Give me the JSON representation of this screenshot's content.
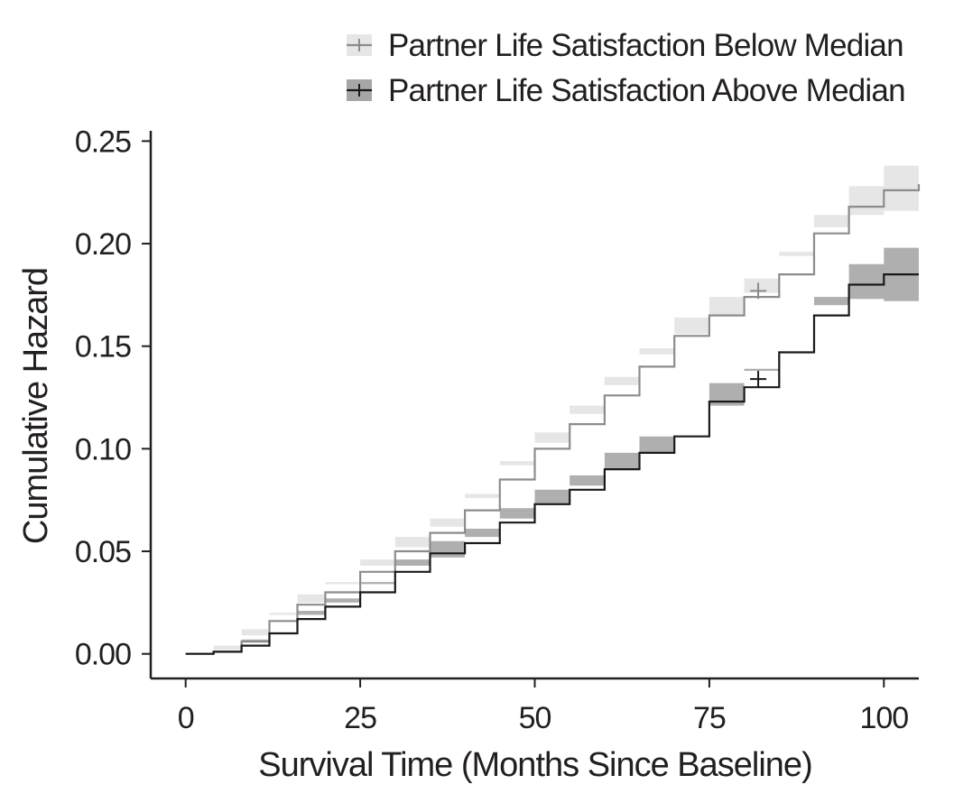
{
  "chart_data": {
    "type": "line",
    "subtype": "step",
    "title": "",
    "xlabel": "Survival Time (Months Since Baseline)",
    "ylabel": "Cumulative Hazard",
    "xlim": [
      -5,
      105
    ],
    "ylim": [
      -0.012,
      0.255
    ],
    "x_ticks": [
      0,
      25,
      50,
      75,
      100
    ],
    "x_tick_labels": [
      "0",
      "25",
      "50",
      "75",
      "100"
    ],
    "y_ticks": [
      0.0,
      0.05,
      0.1,
      0.15,
      0.2,
      0.25
    ],
    "y_tick_labels": [
      "0.00",
      "0.05",
      "0.10",
      "0.15",
      "0.20",
      "0.25"
    ],
    "grid": false,
    "legend_position": "top-right",
    "series": [
      {
        "name": "Partner Life Satisfaction Below Median",
        "line_color": "#8c8c8c",
        "band_color": "#e6e6e6",
        "x": [
          0,
          4,
          8,
          12,
          16,
          20,
          25,
          30,
          35,
          40,
          45,
          50,
          55,
          60,
          65,
          70,
          75,
          80,
          85,
          90,
          95,
          100,
          105
        ],
        "y": [
          0.0,
          0.001,
          0.006,
          0.016,
          0.024,
          0.03,
          0.04,
          0.05,
          0.059,
          0.07,
          0.085,
          0.1,
          0.112,
          0.126,
          0.14,
          0.155,
          0.165,
          0.174,
          0.185,
          0.205,
          0.218,
          0.226,
          0.229
        ],
        "ci_lower": [
          0.0,
          0.0,
          0.004,
          0.012,
          0.019,
          0.025,
          0.034,
          0.043,
          0.052,
          0.062,
          0.076,
          0.092,
          0.103,
          0.117,
          0.131,
          0.146,
          0.156,
          0.165,
          0.176,
          0.196,
          0.208,
          0.214,
          0.216
        ],
        "ci_upper": [
          0.0,
          0.002,
          0.009,
          0.02,
          0.029,
          0.035,
          0.046,
          0.057,
          0.066,
          0.078,
          0.094,
          0.108,
          0.121,
          0.135,
          0.149,
          0.164,
          0.174,
          0.183,
          0.194,
          0.214,
          0.228,
          0.238,
          0.244
        ],
        "censor_marks": [
          {
            "x": 82,
            "y": 0.177
          }
        ]
      },
      {
        "name": "Partner Life Satisfaction Above Median",
        "line_color": "#1a1a1a",
        "band_color": "#a6a6a6",
        "x": [
          0,
          4,
          8,
          12,
          16,
          20,
          25,
          30,
          35,
          40,
          45,
          50,
          55,
          60,
          65,
          70,
          75,
          80,
          85,
          90,
          95,
          100,
          105
        ],
        "y": [
          0.0,
          0.001,
          0.004,
          0.01,
          0.017,
          0.023,
          0.03,
          0.04,
          0.049,
          0.054,
          0.064,
          0.073,
          0.08,
          0.09,
          0.098,
          0.106,
          0.123,
          0.13,
          0.147,
          0.165,
          0.18,
          0.185,
          0.185
        ],
        "ci_lower": [
          0.0,
          0.0,
          0.002,
          0.007,
          0.013,
          0.019,
          0.025,
          0.034,
          0.043,
          0.047,
          0.057,
          0.066,
          0.073,
          0.082,
          0.09,
          0.098,
          0.114,
          0.121,
          0.138,
          0.156,
          0.17,
          0.173,
          0.172
        ],
        "ci_upper": [
          0.0,
          0.002,
          0.006,
          0.013,
          0.021,
          0.027,
          0.035,
          0.046,
          0.055,
          0.061,
          0.071,
          0.08,
          0.087,
          0.098,
          0.106,
          0.114,
          0.132,
          0.139,
          0.156,
          0.174,
          0.19,
          0.198,
          0.2
        ],
        "censor_marks": [
          {
            "x": 82,
            "y": 0.134
          }
        ]
      }
    ]
  }
}
